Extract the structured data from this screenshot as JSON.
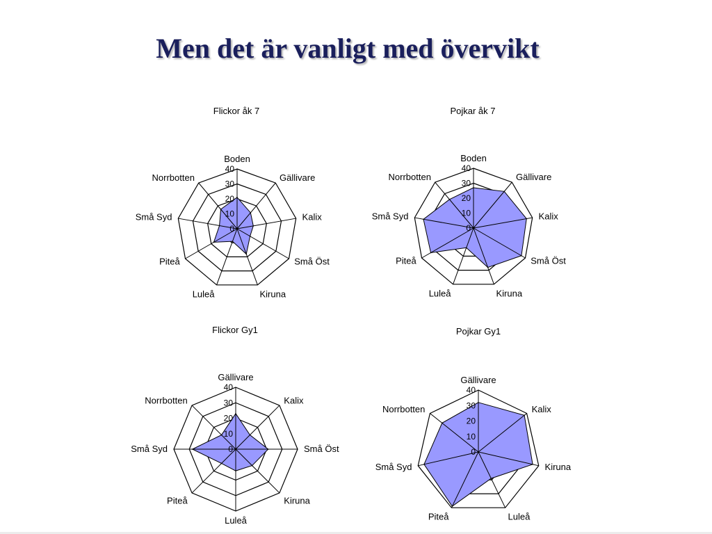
{
  "slide": {
    "title": "Men det är vanligt med övervikt"
  },
  "chart_data": [
    {
      "type": "radar",
      "title": "Flickor åk 7",
      "categories": [
        "Boden",
        "Gällivare",
        "Kalix",
        "Små Öst",
        "Kiruna",
        "Luleå",
        "Piteå",
        "Små Syd",
        "Norrbotten"
      ],
      "values": [
        21,
        14,
        11,
        10,
        18,
        9,
        18,
        12,
        17
      ],
      "rticks": [
        "0",
        "10",
        "20",
        "30",
        "40"
      ],
      "rlim": [
        0,
        40
      ],
      "fill_color": "#9999ff",
      "line_color": "#000000"
    },
    {
      "type": "radar",
      "title": "Pojkar åk 7",
      "categories": [
        "Boden",
        "Gällivare",
        "Kalix",
        "Små Öst",
        "Kiruna",
        "Luleå",
        "Piteå",
        "Små Syd",
        "Norrbotten"
      ],
      "values": [
        27,
        32,
        36,
        37,
        28,
        14,
        33,
        34,
        25
      ],
      "rticks": [
        "0",
        "10",
        "20",
        "30",
        "40"
      ],
      "rlim": [
        0,
        40
      ],
      "fill_color": "#9999ff",
      "line_color": "#000000"
    },
    {
      "type": "radar",
      "title": "Flickor Gy1",
      "categories": [
        "Gällivare",
        "Kalix",
        "Små Öst",
        "Kiruna",
        "Luleå",
        "Piteå",
        "Små Syd",
        "Norrbotten"
      ],
      "values": [
        23,
        13,
        21,
        15,
        14,
        13,
        28,
        13
      ],
      "rticks": [
        "0",
        "10",
        "20",
        "30",
        "40"
      ],
      "rlim": [
        0,
        40
      ],
      "fill_color": "#9999ff",
      "line_color": "#000000"
    },
    {
      "type": "radar",
      "title": "Pojkar Gy1",
      "categories": [
        "Gällivare",
        "Kalix",
        "Kiruna",
        "Luleå",
        "Piteå",
        "Små Syd",
        "Norrbotten"
      ],
      "values": [
        32,
        38,
        36,
        19,
        39,
        36,
        30
      ],
      "rticks": [
        "0",
        "10",
        "20",
        "30",
        "40"
      ],
      "rlim": [
        0,
        40
      ],
      "fill_color": "#9999ff",
      "line_color": "#000000"
    }
  ]
}
